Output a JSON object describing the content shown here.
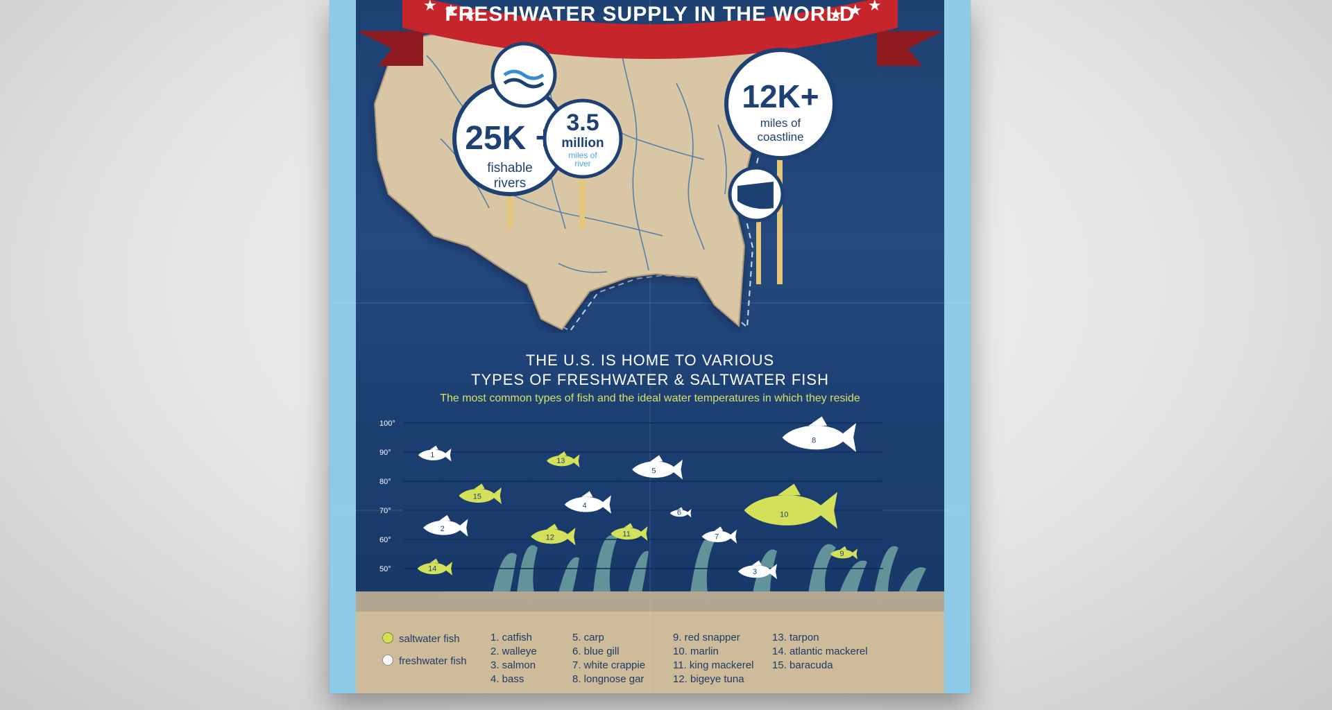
{
  "banner": {
    "title": "FRESHWATER SUPPLY IN THE WORLD"
  },
  "stats": {
    "rivers": {
      "value": "25K +",
      "label_line1": "fishable",
      "label_line2": "rivers"
    },
    "river_miles": {
      "value": "3.5",
      "unit": "million",
      "label_line1": "miles of",
      "label_line2": "river"
    },
    "coastline": {
      "value": "12K+",
      "label_line1": "miles of",
      "label_line2": "coastline"
    }
  },
  "section": {
    "heading_line1": "THE U.S. IS HOME TO VARIOUS",
    "heading_line2": "TYPES OF FRESHWATER & SALTWATER FISH",
    "subheading": "The most common types of fish and the ideal water temperatures in which they reside"
  },
  "chart_data": {
    "type": "scatter",
    "y_ticks": [
      "100°",
      "90°",
      "80°",
      "70°",
      "60°",
      "50°"
    ],
    "ylim": [
      50,
      100
    ],
    "points": [
      {
        "num": "1",
        "type": "freshwater",
        "temp": 89
      },
      {
        "num": "2",
        "type": "freshwater",
        "temp": 64
      },
      {
        "num": "3",
        "type": "freshwater",
        "temp": 49
      },
      {
        "num": "4",
        "type": "freshwater",
        "temp": 72
      },
      {
        "num": "5",
        "type": "freshwater",
        "temp": 84
      },
      {
        "num": "6",
        "type": "freshwater",
        "temp": 69
      },
      {
        "num": "7",
        "type": "freshwater",
        "temp": 61
      },
      {
        "num": "8",
        "type": "freshwater",
        "temp": 95
      },
      {
        "num": "9",
        "type": "saltwater",
        "temp": 55
      },
      {
        "num": "10",
        "type": "saltwater",
        "temp": 70
      },
      {
        "num": "11",
        "type": "saltwater",
        "temp": 62
      },
      {
        "num": "12",
        "type": "saltwater",
        "temp": 61
      },
      {
        "num": "13",
        "type": "saltwater",
        "temp": 87
      },
      {
        "num": "14",
        "type": "saltwater",
        "temp": 50
      },
      {
        "num": "15",
        "type": "saltwater",
        "temp": 75
      }
    ]
  },
  "legend": {
    "saltwater": "saltwater fish",
    "freshwater": "freshwater fish",
    "saltwater_color": "#d4df5a",
    "freshwater_color": "#ffffff"
  },
  "fish_list": {
    "col1": [
      "1. catfish",
      "2. walleye",
      "3. salmon",
      "4. bass"
    ],
    "col2": [
      "5. carp",
      "6. blue gill",
      "7. white crappie",
      "8. longnose gar"
    ],
    "col3": [
      "9. red snapper",
      "10. marlin",
      "11. king mackerel",
      "12. bigeye tuna"
    ],
    "col4": [
      "13. tarpon",
      "14. atlantic mackerel",
      "15. baracuda"
    ]
  },
  "colors": {
    "navy": "#1e4173",
    "banner_red": "#c6252c",
    "land": "#d9c6a5",
    "sand": "#cdbb99",
    "accent_yellow": "#d7e264"
  }
}
